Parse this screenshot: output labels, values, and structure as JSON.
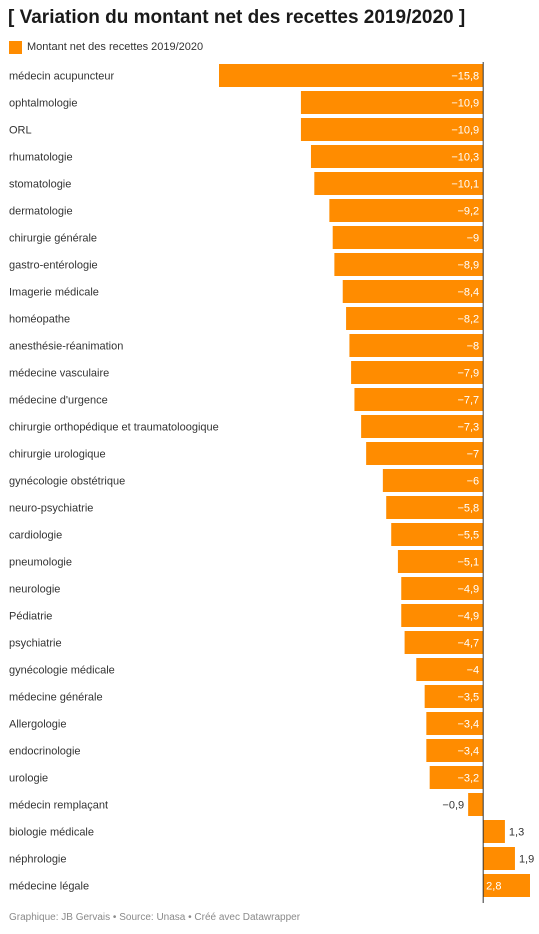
{
  "title": "[ Variation du montant net des recettes 2019/2020 ]",
  "footer": "Graphique: JB Gervais • Source: Unasa • Créé avec Datawrapper",
  "colors": {
    "bar": "#ff8c00",
    "axis": "#333333",
    "label_inside": "#ffffff",
    "label_outside": "#333333"
  },
  "chart_data": {
    "type": "bar",
    "orientation": "horizontal",
    "legend": {
      "position": "top-left",
      "entries": [
        "Montant net des recettes 2019/2020"
      ]
    },
    "xlim": [
      -15.8,
      2.8
    ],
    "grid": false,
    "series": [
      {
        "name": "Montant net des recettes 2019/2020",
        "categories": [
          "médecin acupuncteur",
          "ophtalmologie",
          "ORL",
          "rhumatologie",
          "stomatologie",
          "dermatologie",
          "chirurgie générale",
          "gastro-entérologie",
          "Imagerie médicale",
          "homéopathe",
          "anesthésie-réanimation",
          "médecine vasculaire",
          "médecine d'urgence",
          "chirurgie orthopédique et traumatoloogique",
          "chirurgie urologique",
          "gynécologie obstétrique",
          "neuro-psychiatrie",
          "cardiologie",
          "pneumologie",
          "neurologie",
          "Pédiatrie",
          "psychiatrie",
          "gynécologie médicale",
          "médecine générale",
          "Allergologie",
          "endocrinologie",
          "urologie",
          "médecin remplaçant",
          "biologie médicale",
          "néphrologie",
          "médecine légale"
        ],
        "values": [
          -15.8,
          -10.9,
          -10.9,
          -10.3,
          -10.1,
          -9.2,
          -9,
          -8.9,
          -8.4,
          -8.2,
          -8,
          -7.9,
          -7.7,
          -7.3,
          -7,
          -6,
          -5.8,
          -5.5,
          -5.1,
          -4.9,
          -4.9,
          -4.7,
          -4,
          -3.5,
          -3.4,
          -3.4,
          -3.2,
          -0.9,
          1.3,
          1.9,
          2.8
        ],
        "labels": [
          "−15,8",
          "−10,9",
          "−10,9",
          "−10,3",
          "−10,1",
          "−9,2",
          "−9",
          "−8,9",
          "−8,4",
          "−8,2",
          "−8",
          "−7,9",
          "−7,7",
          "−7,3",
          "−7",
          "−6",
          "−5,8",
          "−5,5",
          "−5,1",
          "−4,9",
          "−4,9",
          "−4,7",
          "−4",
          "−3,5",
          "−3,4",
          "−3,4",
          "−3,2",
          "−0,9",
          "1,3",
          "1,9",
          "2,8"
        ]
      }
    ]
  }
}
